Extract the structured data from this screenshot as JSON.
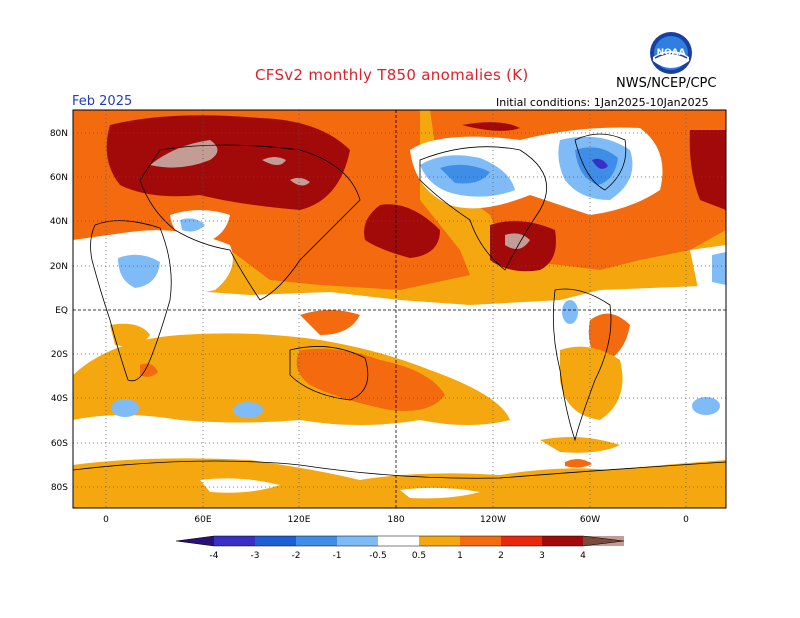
{
  "header": {
    "title": "CFSv2 monthly T850 anomalies (K)",
    "agency": "NWS/NCEP/CPC",
    "period": "Feb 2025",
    "initial_conditions": "Initial conditions: 1Jan2025-10Jan2025",
    "logo_text": "NOAA"
  },
  "map": {
    "projection": "cylindrical equidistant",
    "variable": "850 hPa temperature anomaly",
    "units": "K",
    "lat_labels": [
      "80N",
      "60N",
      "40N",
      "20N",
      "EQ",
      "20S",
      "40S",
      "60S",
      "80S"
    ],
    "lon_labels": [
      "0",
      "60E",
      "120E",
      "180",
      "120W",
      "60W",
      "0"
    ],
    "grid_lines": "dotted"
  },
  "colorbar": {
    "tick_labels": [
      "-4",
      "-3",
      "-2",
      "-1",
      "-0.5",
      "0.5",
      "1",
      "2",
      "3",
      "4"
    ],
    "colors": [
      "#2a0f7a",
      "#3a2fc4",
      "#1f5fd6",
      "#3e8ee8",
      "#7fbcf7",
      "#ffffff",
      "#f5a70f",
      "#f46a0e",
      "#e8280c",
      "#a20a0a",
      "#c49c96",
      "#7a4a3e"
    ]
  }
}
